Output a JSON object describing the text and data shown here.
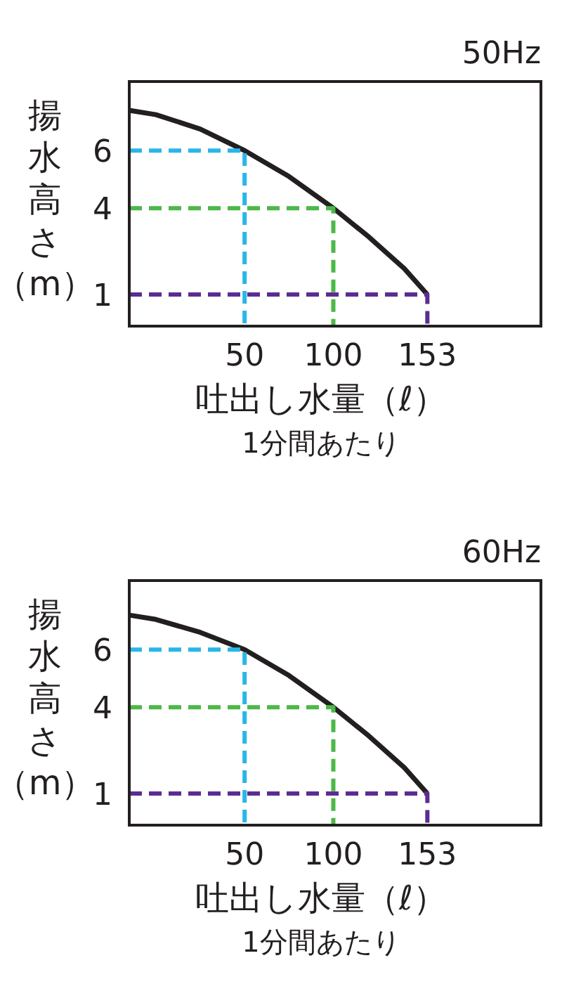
{
  "chart_data": [
    {
      "type": "line",
      "title": "50Hz",
      "xlabel": "吐出し水量（ℓ）",
      "ylabel": "揚水高さ（m）",
      "annotations": [
        "1分間あたり"
      ],
      "xlim": [
        -15,
        217
      ],
      "ylim": [
        -0.1,
        8.4
      ],
      "xticks": [
        50,
        100,
        153
      ],
      "yticks": [
        6,
        4,
        1
      ],
      "series": [
        {
          "color": "#231f20",
          "line_style": "solid",
          "x": [
            -15,
            0,
            25,
            50,
            75,
            100,
            120,
            140,
            153
          ],
          "values": [
            7.4,
            7.25,
            6.75,
            6,
            5.1,
            4,
            3,
            1.9,
            1
          ]
        },
        {
          "color": "#29b6e8",
          "line_style": "dashed",
          "x": [
            -15,
            50,
            50
          ],
          "values": [
            6,
            6,
            -0.1
          ]
        },
        {
          "color": "#4cb848",
          "line_style": "dashed",
          "x": [
            -15,
            100,
            100
          ],
          "values": [
            4,
            4,
            -0.1
          ]
        },
        {
          "color": "#5b2d90",
          "line_style": "dashed",
          "x": [
            -15,
            153,
            153
          ],
          "values": [
            1,
            1,
            -0.1
          ]
        }
      ]
    },
    {
      "type": "line",
      "title": "60Hz",
      "xlabel": "吐出し水量（ℓ）",
      "ylabel": "揚水高さ（m）",
      "annotations": [
        "1分間あたり"
      ],
      "xlim": [
        -15,
        217
      ],
      "ylim": [
        -0.1,
        8.4
      ],
      "xticks": [
        50,
        100,
        153
      ],
      "yticks": [
        6,
        4,
        1
      ],
      "series": [
        {
          "color": "#231f20",
          "line_style": "solid",
          "x": [
            -15,
            0,
            25,
            50,
            75,
            100,
            120,
            140,
            153
          ],
          "values": [
            7.2,
            7.05,
            6.6,
            6,
            5.1,
            4,
            3,
            1.9,
            1
          ]
        },
        {
          "color": "#29b6e8",
          "line_style": "dashed",
          "x": [
            -15,
            50,
            50
          ],
          "values": [
            6,
            6,
            -0.1
          ]
        },
        {
          "color": "#4cb848",
          "line_style": "dashed",
          "x": [
            -15,
            100,
            100
          ],
          "values": [
            4,
            4,
            -0.1
          ]
        },
        {
          "color": "#5b2d90",
          "line_style": "dashed",
          "x": [
            -15,
            153,
            153
          ],
          "values": [
            1,
            1,
            -0.1
          ]
        }
      ]
    }
  ]
}
